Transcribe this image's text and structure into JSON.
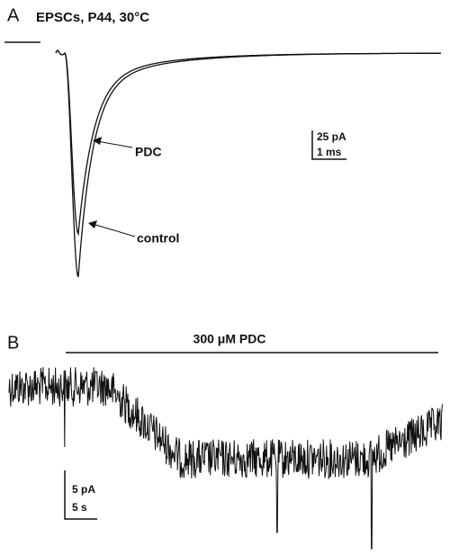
{
  "panel_a": {
    "label": "A",
    "title": "EPSCs, P44, 30°C",
    "annotations": [
      "PDC",
      "control"
    ],
    "scale_bar": [
      "25 pA",
      "1 ms"
    ]
  },
  "panel_b": {
    "label": "B",
    "bar_label": "300 μM PDC",
    "scale_bar": [
      "5 pA",
      "5 s"
    ]
  }
}
